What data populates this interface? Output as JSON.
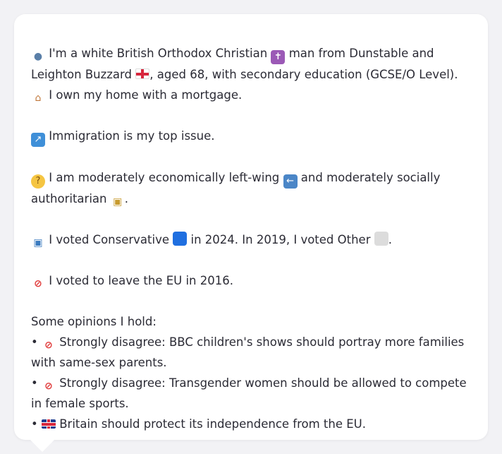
{
  "profile": {
    "line1_a": "I'm a white British Orthodox Christian",
    "line1_b": "man from Dunstable and Leighton Buzzard",
    "line1_c": ", aged 68, with secondary education (GCSE/O Level).",
    "line1_d": "I own my home with a mortgage."
  },
  "top_issue": "Immigration is my top issue.",
  "ideology": {
    "a": "I am moderately economically left-wing",
    "b": "and moderately socially authoritarian",
    "c": "."
  },
  "votes": {
    "a": "I voted Conservative",
    "b": "in 2024. In 2019, I voted Other",
    "c": "."
  },
  "brexit": "I voted to leave the EU in 2016.",
  "opinions": {
    "heading": "Some opinions I hold:",
    "items": [
      {
        "bullet": "•",
        "text": "Strongly disagree: BBC children's shows should portray more families with same-sex parents."
      },
      {
        "bullet": "•",
        "text": "Strongly disagree: Transgender women should be allowed to compete in female sports."
      },
      {
        "bullet": "•",
        "text": "Britain should protect its independence from the EU."
      }
    ]
  },
  "icons": {
    "person": "person-icon",
    "cross": "latin-cross-icon",
    "england_flag": "england-flag-icon",
    "house": "house-icon",
    "immigration": "passport-control-icon",
    "thinking": "thinking-face-icon",
    "left_arrow": "left-arrow-icon",
    "lock": "lock-icon",
    "ballot": "ballot-box-icon",
    "blue_square": "blue-square-icon",
    "grey_square": "white-square-icon",
    "prohibited": "prohibited-icon",
    "uk_flag": "uk-flag-icon"
  },
  "colors": {
    "background": "#f2f2f5",
    "card": "#ffffff",
    "text": "#2b2b35"
  }
}
